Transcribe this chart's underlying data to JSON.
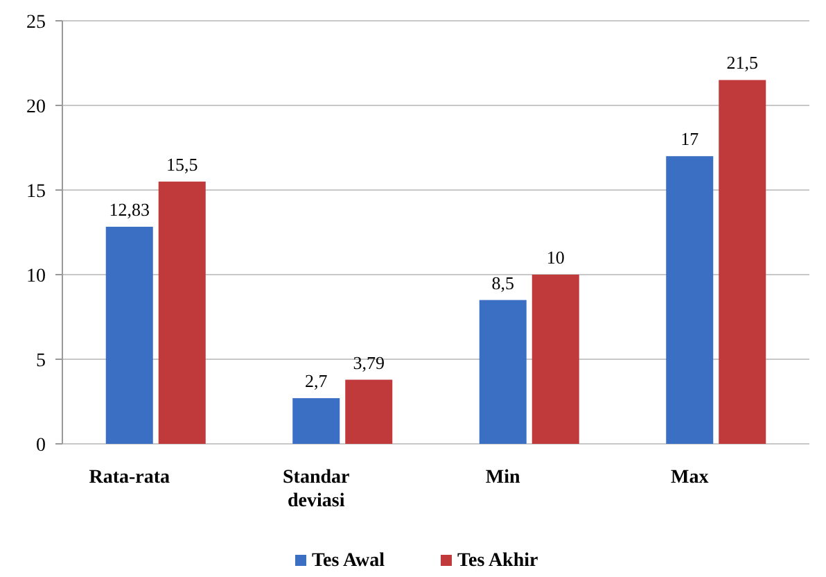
{
  "chart_data": {
    "type": "bar",
    "categories": [
      "Rata-rata",
      "Standar deviasi",
      "Min",
      "Max"
    ],
    "series": [
      {
        "name": "Tes Awal",
        "color": "#3a6fc4",
        "values": [
          12.83,
          2.7,
          8.5,
          17
        ],
        "value_labels": [
          "12,83",
          "2,7",
          "8,5",
          "17"
        ]
      },
      {
        "name": "Tes Akhir",
        "color": "#c0393b",
        "values": [
          15.5,
          3.79,
          10,
          21.5
        ],
        "value_labels": [
          "15,5",
          "3,79",
          "10",
          "21,5"
        ]
      }
    ],
    "ylim": [
      0,
      25
    ],
    "yticks": [
      0,
      5,
      10,
      15,
      20,
      25
    ],
    "grid": "y",
    "legend": "bottom"
  }
}
